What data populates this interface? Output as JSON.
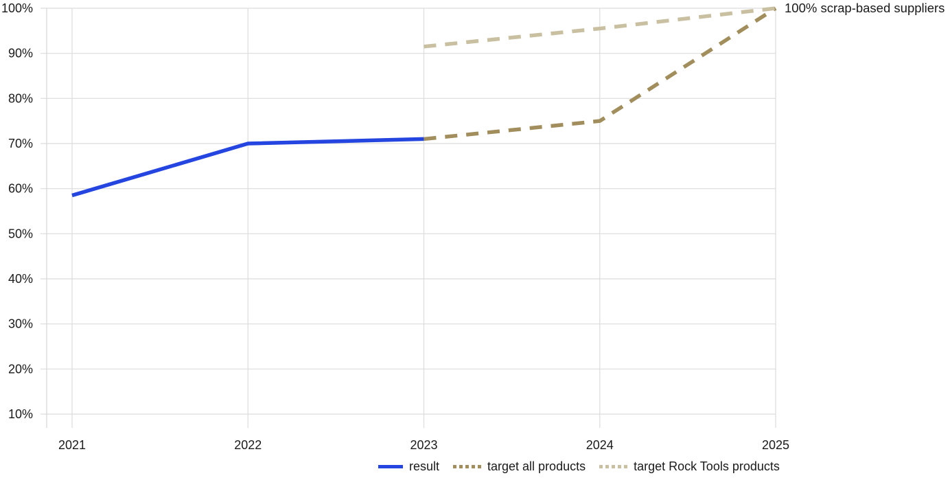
{
  "colors": {
    "grid": "#dcdcdc",
    "axis": "#d6d6d6",
    "text": "#1a1a1a",
    "background": "#ffffff"
  },
  "chart_data": {
    "type": "line",
    "title": "",
    "xlabel": "",
    "ylabel": "",
    "x_tick_labels": [
      "2021",
      "2022",
      "2023",
      "2024",
      "2025"
    ],
    "y_tick_labels": [
      "10%",
      "20%",
      "30%",
      "40%",
      "50%",
      "60%",
      "70%",
      "80%",
      "90%",
      "100%"
    ],
    "ylim": [
      10,
      100
    ],
    "grid": true,
    "legend_position": "bottom",
    "annotation": "100% scrap-based suppliers",
    "series": [
      {
        "name": "result",
        "style": "solid",
        "color": "#2445df",
        "points": [
          [
            2021,
            58.5
          ],
          [
            2022,
            70
          ],
          [
            2023,
            71
          ]
        ]
      },
      {
        "name": "target all products",
        "style": "dashed",
        "color": "#a18e5c",
        "points": [
          [
            2023,
            71
          ],
          [
            2024,
            75
          ],
          [
            2025,
            100
          ]
        ]
      },
      {
        "name": "target Rock Tools products",
        "style": "dashed",
        "color": "#c9c0a1",
        "points": [
          [
            2023,
            91.5
          ],
          [
            2024,
            95.5
          ],
          [
            2025,
            100
          ]
        ]
      }
    ]
  }
}
